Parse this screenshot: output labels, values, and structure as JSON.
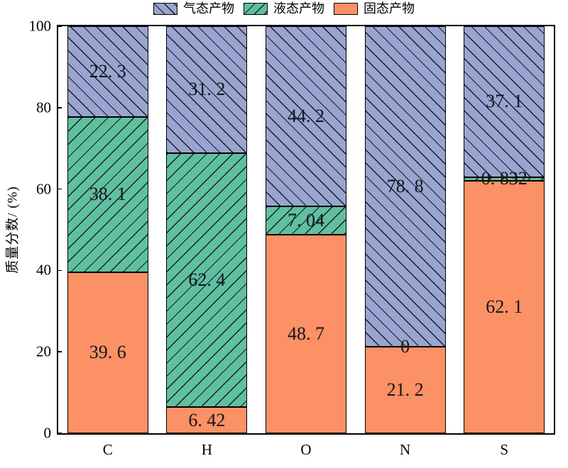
{
  "chart_data": {
    "type": "bar",
    "stacked": true,
    "title": "",
    "xlabel": "",
    "ylabel": "质量分数/ (%)",
    "ylim": [
      0,
      100
    ],
    "yticks": [
      "0",
      "20",
      "40",
      "60",
      "80",
      "100"
    ],
    "ytick_values": [
      0,
      20,
      40,
      60,
      80,
      100
    ],
    "grid": false,
    "legend_position": "top-center",
    "categories": [
      "C",
      "H",
      "O",
      "N",
      "S"
    ],
    "series": [
      {
        "name": "固态产物",
        "color": "#FB9164",
        "hatch": "none",
        "values": [
          39.6,
          6.42,
          48.7,
          21.2,
          62.1
        ],
        "labels": [
          "39. 6",
          "6. 42",
          "48. 7",
          "21. 2",
          "62. 1"
        ]
      },
      {
        "name": "液态产物",
        "color": "#5FC0A0",
        "hatch": "/",
        "values": [
          38.1,
          62.4,
          7.04,
          0,
          0.832
        ],
        "labels": [
          "38. 1",
          "62. 4",
          "7. 04",
          "0",
          "0. 832"
        ]
      },
      {
        "name": "气态产物",
        "color": "#99A5D0",
        "hatch": "\\",
        "values": [
          22.3,
          31.2,
          44.2,
          78.8,
          37.1
        ],
        "labels": [
          "22. 3",
          "31. 2",
          "44. 2",
          "78. 8",
          "37. 1"
        ]
      }
    ],
    "legend_order": [
      "气态产物",
      "液态产物",
      "固态产物"
    ],
    "hatch_color": "#1a1a24",
    "frame_color": "#000000",
    "label_color": "#14141e"
  }
}
